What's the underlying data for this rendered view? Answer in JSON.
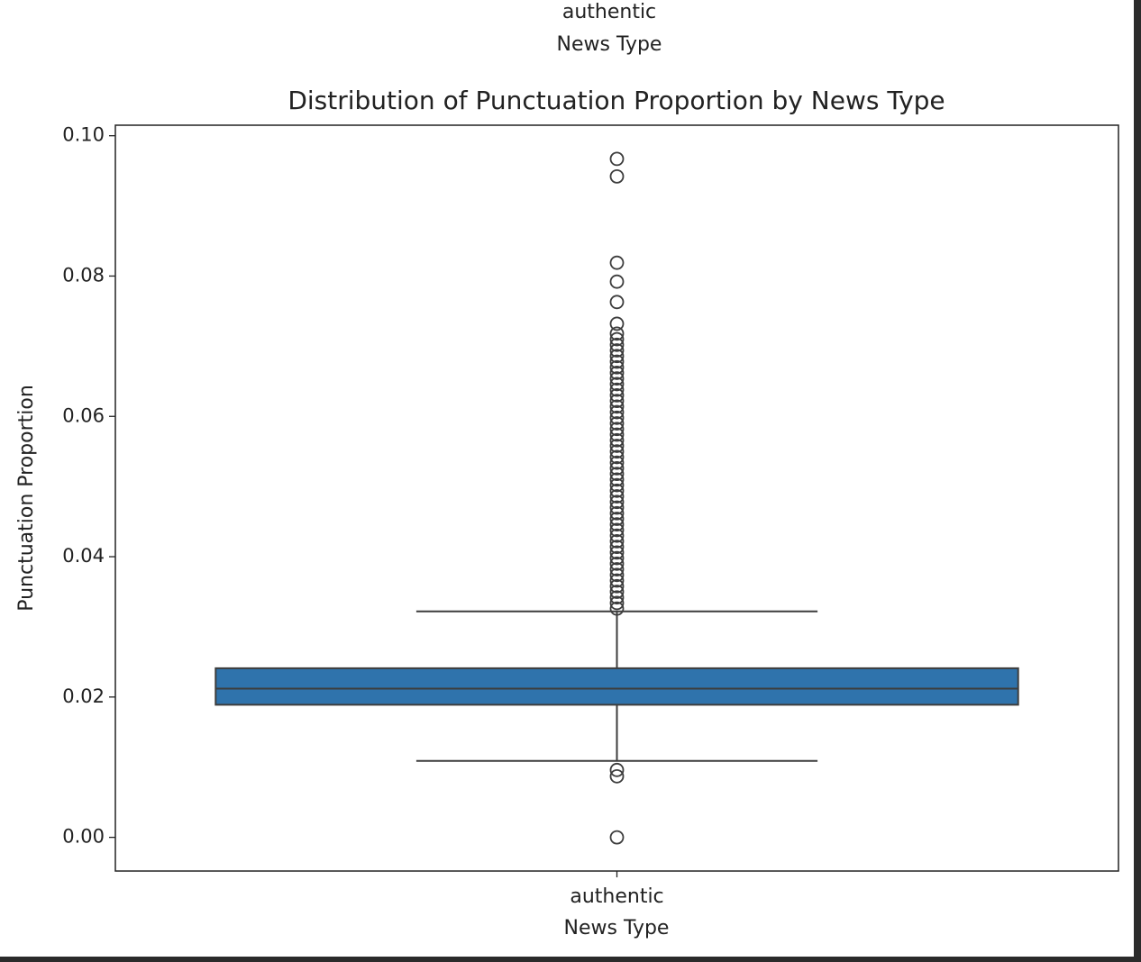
{
  "previous_chart_fragment": {
    "tick_label": "authentic",
    "xlabel": "News Type"
  },
  "chart_data": {
    "type": "box",
    "title": "Distribution of Punctuation Proportion by News Type",
    "xlabel": "News Type",
    "ylabel": "Punctuation Proportion",
    "categories": [
      "authentic"
    ],
    "color": "#2f73ac",
    "ylim": [
      -0.0048,
      0.1015
    ],
    "yticks": [
      {
        "value": 0,
        "label": "0.00"
      },
      0.02,
      0.04,
      0.06,
      0.08,
      {
        "value": 0.1,
        "label": "0.10"
      }
    ],
    "boxes": [
      {
        "whislo": 0.0109,
        "q1": 0.0189,
        "med": 0.0212,
        "q3": 0.0241,
        "whishi": 0.0322,
        "fliers": [
          0.0967,
          0.0942,
          0.0819,
          0.0792,
          0.0763,
          0.0732,
          0.0718,
          0.071,
          0.0702,
          0.0694,
          0.0686,
          0.0678,
          0.067,
          0.0662,
          0.0654,
          0.0646,
          0.0638,
          0.063,
          0.0622,
          0.0614,
          0.0606,
          0.0598,
          0.059,
          0.0582,
          0.0574,
          0.0566,
          0.0558,
          0.055,
          0.0542,
          0.0534,
          0.0526,
          0.0518,
          0.051,
          0.0502,
          0.0494,
          0.0486,
          0.0478,
          0.047,
          0.0462,
          0.0454,
          0.0446,
          0.0438,
          0.043,
          0.0422,
          0.0414,
          0.0406,
          0.0398,
          0.039,
          0.0382,
          0.0374,
          0.0366,
          0.0358,
          0.035,
          0.0342,
          0.0334,
          0.0326,
          0.0096,
          0.0087,
          0
        ]
      }
    ]
  }
}
